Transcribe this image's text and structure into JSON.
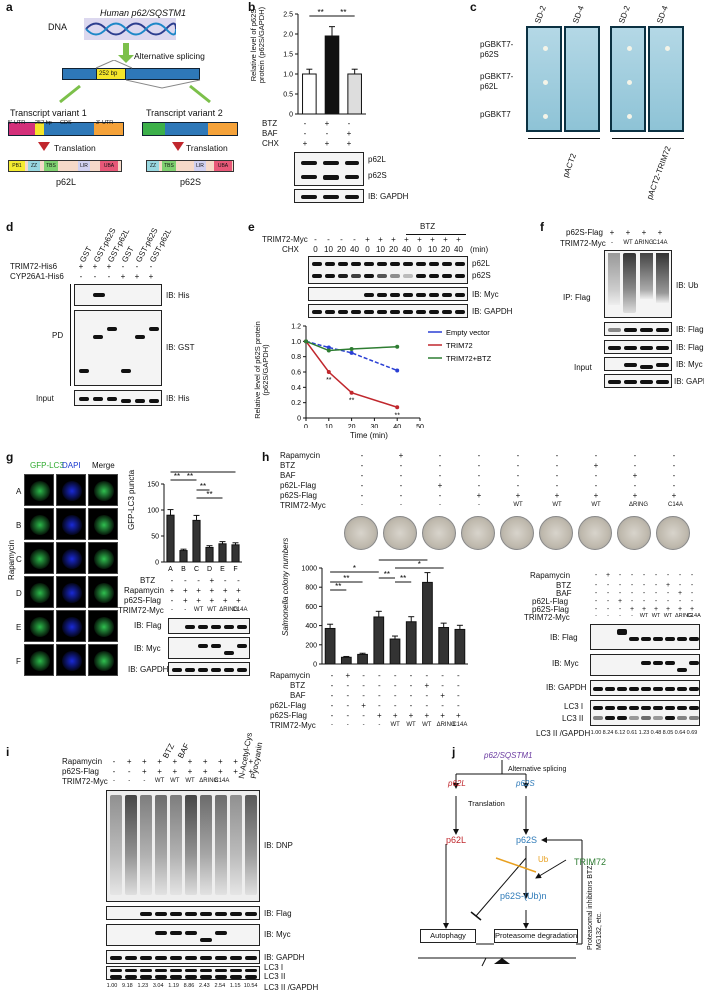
{
  "panels": {
    "a": "a",
    "b": "b",
    "c": "c",
    "d": "d",
    "e": "e",
    "f": "f",
    "g": "g",
    "h": "h",
    "i": "i",
    "j": "j"
  },
  "a": {
    "dna": "DNA",
    "gene": "Human p62/SQSTM1",
    "splicing": "Alternative splicing",
    "bp": "252 bp",
    "tv1": "Transcript variant 1",
    "tv2": "Transcript variant 2",
    "utr5": "5'-UTR",
    "bp252": "252 bp",
    "cds": "CDS",
    "utr3": "3'-UTR",
    "translation": "Translation",
    "domains_l": [
      "PB1",
      "ZZ",
      "TBS",
      "LIR",
      "UBA"
    ],
    "domains_s": [
      "ZZ",
      "TBS",
      "LIR",
      "UBA"
    ],
    "p62L": "p62L",
    "p62S": "p62S"
  },
  "b": {
    "ylabel": "Relative level of p62S protein (p62S/GAPDH)",
    "rows": [
      "BTZ",
      "BAF",
      "CHX"
    ],
    "row_vals": [
      [
        "-",
        "+",
        "-"
      ],
      [
        "-",
        "-",
        "+"
      ],
      [
        "+",
        "+",
        "+"
      ]
    ],
    "sig": "**",
    "blot_labels": [
      "p62L",
      "p62S",
      "IB: GAPDH"
    ]
  },
  "c": {
    "rows": [
      "pGBKT7-\np62S",
      "pGBKT7-\np62L",
      "pGBKT7"
    ],
    "cols": [
      "SD-2",
      "SD-4",
      "SD-2",
      "SD-4"
    ],
    "bottom": [
      "pACT2",
      "pACT2-TRIM72"
    ]
  },
  "d": {
    "cols": [
      "GST",
      "GST-p62S",
      "GST-p62L",
      "GST",
      "GST-p62S",
      "GST-p62L"
    ],
    "rows": [
      "TRIM72-His6",
      "CYP26A1-His6"
    ],
    "trim": [
      "+",
      "+",
      "+",
      "-",
      "-",
      "-"
    ],
    "cyp": [
      "-",
      "-",
      "-",
      "+",
      "+",
      "+"
    ],
    "pd": "PD",
    "input": "Input",
    "ib": [
      "IB: His",
      "IB: GST",
      "IB: His"
    ]
  },
  "e": {
    "trim": "TRIM72-Myc",
    "chx": "CHX",
    "btz": "BTZ",
    "min": "(min)",
    "trim_vals": [
      "-",
      "-",
      "-",
      "-",
      "+",
      "+",
      "+",
      "+",
      "+",
      "+",
      "+",
      "+"
    ],
    "chx_vals": [
      "0",
      "10",
      "20",
      "40",
      "0",
      "10",
      "20",
      "40",
      "0",
      "10",
      "20",
      "40"
    ],
    "blot_labels": [
      "p62L",
      "p62S",
      "IB: Myc",
      "IB: GAPDH"
    ],
    "ylabel": "Relative level of p62S protein (p62S/GAPDH)",
    "xlabel": "Time (min)",
    "sig": "**"
  },
  "f": {
    "rows": [
      "p62S-Flag",
      "TRIM72-Myc"
    ],
    "p62": [
      "+",
      "+",
      "+",
      "+"
    ],
    "trim": [
      "-",
      "WT",
      "ΔRING",
      "C14A"
    ],
    "ip": "IP: Flag",
    "input": "Input",
    "ib": [
      "IB: Ub",
      "IB: Flag",
      "IB: Flag",
      "IB: Myc",
      "IB: GAPDH"
    ]
  },
  "g": {
    "channels": [
      "GFP-LC3",
      "DAPI",
      "Merge"
    ],
    "rows": [
      "A",
      "B",
      "C",
      "D",
      "E",
      "F"
    ],
    "side": "Rapamycin",
    "ylabel": "GFP-LC3 puncta",
    "cond": [
      "BTZ",
      "Rapamycin",
      "p62S-Flag",
      "TRIM72-Myc"
    ],
    "btz": [
      "-",
      "-",
      "-",
      "+",
      "-",
      "-"
    ],
    "rapa": [
      "+",
      "+",
      "+",
      "+",
      "+",
      "+"
    ],
    "p62": [
      "-",
      "+",
      "+",
      "+",
      "+",
      "+"
    ],
    "trim": [
      "-",
      "-",
      "WT",
      "WT",
      "ΔRING",
      "C14A"
    ],
    "ib": [
      "IB: Flag",
      "IB: Myc",
      "IB: GAPDH"
    ],
    "sig": "**"
  },
  "h": {
    "top_rows": [
      "Rapamycin",
      "BTZ",
      "BAF",
      "p62L-Flag",
      "p62S-Flag",
      "TRIM72-Myc"
    ],
    "ylabel": "Salmonella colony numbers",
    "rows": [
      "Rapamycin",
      "BTZ",
      "BAF",
      "p62L-Flag",
      "p62S-Flag",
      "TRIM72-Myc"
    ],
    "rapa": [
      "-",
      "+",
      "-",
      "-",
      "-",
      "-",
      "-",
      "-",
      "-"
    ],
    "btz": [
      "-",
      "-",
      "-",
      "-",
      "-",
      "-",
      "+",
      "-",
      "-"
    ],
    "baf": [
      "-",
      "-",
      "-",
      "-",
      "-",
      "-",
      "-",
      "+",
      "-"
    ],
    "p62l": [
      "-",
      "-",
      "+",
      "-",
      "-",
      "-",
      "-",
      "-",
      "-"
    ],
    "p62s": [
      "-",
      "-",
      "-",
      "+",
      "+",
      "+",
      "+",
      "+",
      "+"
    ],
    "trim": [
      "-",
      "-",
      "-",
      "-",
      "WT",
      "WT",
      "WT",
      "ΔRING",
      "C14A"
    ],
    "rows_blot": [
      "Rapamycin",
      "BTZ",
      "BAF",
      "p62L-Flag",
      "p62S-Flag",
      "TRIM72-Myc"
    ],
    "ib": [
      "IB: Flag",
      "IB: Myc",
      "IB: GAPDH",
      "LC3 I",
      "LC3 II"
    ],
    "ratio_label": "LC3 II /GAPDH",
    "ratios": [
      "1.00",
      "8.24",
      "6.12",
      "0.61",
      "1.23",
      "0.48",
      "8.05",
      "0.64",
      "0.69"
    ],
    "sig1": "*",
    "sig2": "**"
  },
  "i": {
    "rows": [
      "Rapamycin",
      "p62S-Flag",
      "TRIM72-Myc"
    ],
    "col_heads": [
      "BTZ",
      "BAF",
      "N-Acetyl-Cys",
      "Pyocyanin"
    ],
    "rapa": [
      "-",
      "+",
      "+",
      "+",
      "+",
      "+",
      "+",
      "+",
      "+",
      "+"
    ],
    "p62": [
      "-",
      "-",
      "+",
      "+",
      "+",
      "+",
      "+",
      "+",
      "+",
      "+"
    ],
    "trim": [
      "-",
      "-",
      "-",
      "WT",
      "WT",
      "WT",
      "ΔRING",
      "C14A",
      "",
      ""
    ],
    "ib": [
      "IB: DNP",
      "IB: Flag",
      "IB: Myc",
      "IB: GAPDH",
      "LC3 I",
      "LC3 II"
    ],
    "ratio_label": "LC3 II /GAPDH",
    "ratios": [
      "1.00",
      "9.18",
      "1.23",
      "3.04",
      "1.19",
      "8.86",
      "2.43",
      "2.54",
      "1.15",
      "10.54"
    ]
  },
  "j": {
    "gene": "p62/SQSTM1",
    "splicing": "Alternative splicing",
    "p62L": "p62L",
    "p62S": "p62S",
    "translation": "Translation",
    "ub": "Ub",
    "trim72": "TRIM72",
    "poly": "p62S-(Ub)n",
    "autophagy": "Autophagy",
    "prot": "Proteasome degradation",
    "inhib": "Proteasomal inhibitors BTZ, MG132, etc."
  },
  "colors": {
    "red": "#c0272d",
    "blue": "#2e7ab8",
    "green": "#2e7d32",
    "orange": "#e8a020",
    "purple": "#6a3aa0"
  },
  "chart_data": [
    {
      "type": "bar",
      "panel": "b",
      "categories": [
        "1",
        "2",
        "3"
      ],
      "values": [
        1.0,
        1.95,
        1.0
      ],
      "ylim": [
        0,
        2.5
      ],
      "yticks": [
        "0",
        "0.5",
        "1.0",
        "1.5",
        "2.0",
        "2.5"
      ],
      "ylabel": "Relative level of p62S protein (p62S/GAPDH)"
    },
    {
      "type": "line",
      "panel": "e",
      "x": [
        0,
        10,
        20,
        40
      ],
      "series": [
        {
          "name": "Empty vector",
          "values": [
            1.0,
            0.92,
            0.85,
            0.62
          ]
        },
        {
          "name": "TRIM72",
          "values": [
            1.0,
            0.6,
            0.33,
            0.14
          ]
        },
        {
          "name": "TRIM72+BTZ",
          "values": [
            1.0,
            0.88,
            0.9,
            0.93
          ]
        }
      ],
      "xlim": [
        0,
        50
      ],
      "ylim": [
        0,
        1.2
      ],
      "xticks": [
        "0",
        "10",
        "20",
        "30",
        "40",
        "50"
      ],
      "yticks": [
        "0",
        "0.2",
        "0.4",
        "0.6",
        "0.8",
        "1.0",
        "1.2"
      ]
    },
    {
      "type": "bar",
      "panel": "g",
      "categories": [
        "A",
        "B",
        "C",
        "D",
        "E",
        "F"
      ],
      "values": [
        90,
        22,
        80,
        28,
        35,
        33
      ],
      "ylim": [
        0,
        150
      ],
      "yticks": [
        "0",
        "50",
        "100",
        "150"
      ]
    },
    {
      "type": "bar",
      "panel": "h",
      "categories": [
        "1",
        "2",
        "3",
        "4",
        "5",
        "6",
        "7",
        "8",
        "9"
      ],
      "values": [
        370,
        70,
        100,
        490,
        260,
        440,
        850,
        380,
        360
      ],
      "ylim": [
        0,
        1000
      ],
      "yticks": [
        "0",
        "200",
        "400",
        "600",
        "800",
        "1000"
      ]
    }
  ]
}
